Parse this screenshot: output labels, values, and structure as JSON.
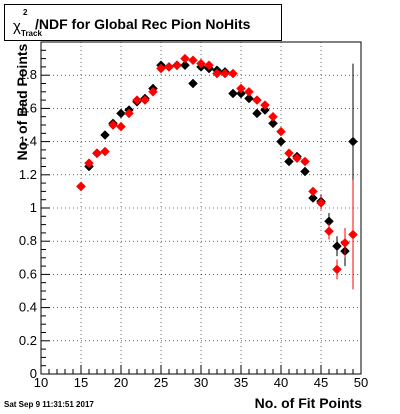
{
  "title": {
    "chi_symbol": "χ",
    "superscript": "2",
    "subscript": "Track",
    "text": "/NDF for Global Rec Pion NoHits"
  },
  "timestamp": "Sat Sep  9 11:31:51 2017",
  "chart_data": {
    "type": "scatter",
    "title": "χ²_Track/NDF for Global Rec Pion NoHits",
    "xlabel": "No. of Fit Points",
    "ylabel": "No. of Bad Points",
    "xlim": [
      10,
      50
    ],
    "ylim": [
      0,
      2
    ],
    "xticks": [
      10,
      15,
      20,
      25,
      30,
      35,
      40,
      45,
      50
    ],
    "yticks": [
      0,
      0.2,
      0.4,
      0.6,
      0.8,
      1,
      1.2,
      1.4,
      1.6,
      1.8
    ],
    "ytick_labels": [
      "0",
      "0.2",
      "0.4",
      "0.6",
      "0.8",
      "1",
      "1.2",
      "1.4",
      "1.6",
      "1.8"
    ],
    "grid": true,
    "series": [
      {
        "color": "#000000",
        "marker": "diamond",
        "x": [
          15,
          16,
          17,
          18,
          19,
          20,
          21,
          22,
          23,
          24,
          25,
          26,
          27,
          28,
          29,
          30,
          31,
          32,
          33,
          34,
          35,
          36,
          37,
          38,
          39,
          40,
          41,
          42,
          43,
          44,
          45,
          46,
          47,
          48,
          49
        ],
        "y": [
          1.13,
          1.25,
          1.33,
          1.44,
          1.51,
          1.57,
          1.59,
          1.64,
          1.66,
          1.72,
          1.86,
          1.85,
          1.86,
          1.86,
          1.75,
          1.85,
          1.84,
          1.83,
          1.82,
          1.69,
          1.69,
          1.66,
          1.57,
          1.59,
          1.51,
          1.4,
          1.28,
          1.31,
          1.22,
          1.06,
          1.04,
          0.92,
          0.77,
          0.74,
          1.4
        ],
        "yerr": [
          0,
          0,
          0,
          0,
          0,
          0,
          0,
          0,
          0,
          0,
          0,
          0,
          0,
          0,
          0,
          0,
          0,
          0,
          0,
          0,
          0,
          0,
          0,
          0,
          0,
          0,
          0,
          0,
          0,
          0,
          0.04,
          0.05,
          0.06,
          0.09,
          0.47
        ]
      },
      {
        "color": "#ff0000",
        "marker": "diamond",
        "x": [
          15,
          16,
          17,
          18,
          19,
          20,
          21,
          22,
          23,
          24,
          25,
          26,
          27,
          28,
          29,
          30,
          31,
          32,
          33,
          34,
          35,
          36,
          37,
          38,
          39,
          40,
          41,
          42,
          43,
          44,
          45,
          46,
          47,
          48,
          49
        ],
        "y": [
          1.13,
          1.27,
          1.33,
          1.34,
          1.5,
          1.49,
          1.57,
          1.65,
          1.65,
          1.7,
          1.84,
          1.85,
          1.86,
          1.9,
          1.89,
          1.87,
          1.86,
          1.81,
          1.81,
          1.81,
          1.72,
          1.7,
          1.65,
          1.62,
          1.55,
          1.46,
          1.33,
          1.3,
          1.28,
          1.1,
          1.03,
          0.86,
          0.63,
          0.79,
          0.84
        ],
        "yerr": [
          0,
          0,
          0,
          0,
          0,
          0,
          0,
          0,
          0,
          0,
          0,
          0,
          0,
          0,
          0,
          0,
          0,
          0,
          0,
          0,
          0,
          0,
          0,
          0,
          0,
          0,
          0,
          0,
          0,
          0,
          0.04,
          0.05,
          0.06,
          0.09,
          0.33
        ]
      }
    ]
  }
}
